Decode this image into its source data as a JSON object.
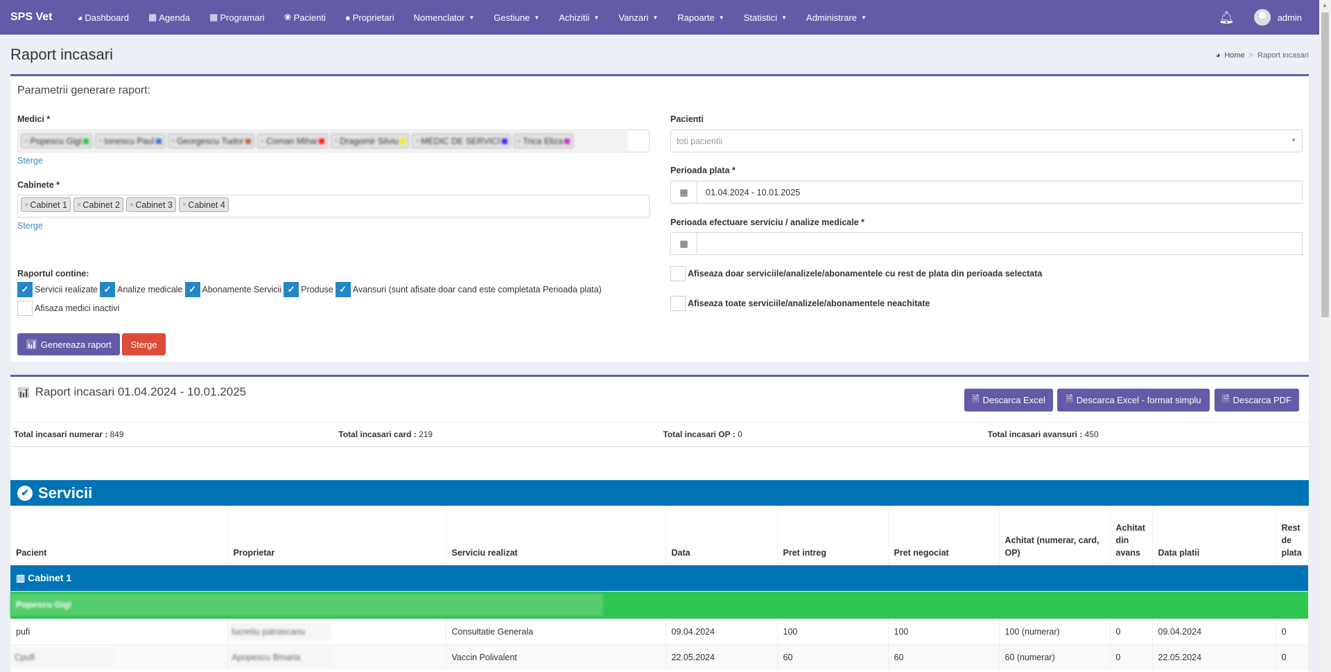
{
  "nav": {
    "brand": "SPS Vet",
    "items": [
      {
        "label": "Dashboard",
        "icon": "dashboard-icon"
      },
      {
        "label": "Agenda",
        "icon": "calendar-icon"
      },
      {
        "label": "Programari",
        "icon": "calendar-icon"
      },
      {
        "label": "Pacienti",
        "icon": "paw-icon"
      },
      {
        "label": "Proprietari",
        "icon": "user-icon"
      },
      {
        "label": "Nomenclator",
        "dropdown": true
      },
      {
        "label": "Gestiune",
        "dropdown": true
      },
      {
        "label": "Achizitii",
        "dropdown": true
      },
      {
        "label": "Vanzari",
        "dropdown": true
      },
      {
        "label": "Rapoarte",
        "dropdown": true
      },
      {
        "label": "Statistici",
        "dropdown": true
      },
      {
        "label": "Administrare",
        "dropdown": true
      }
    ],
    "user": "admin"
  },
  "page": {
    "title": "Raport incasari",
    "breadcrumb": {
      "home": "Home",
      "sep": ">",
      "current": "Raport incasari"
    }
  },
  "params": {
    "title": "Parametrii generare raport:",
    "medici_label": "Medici *",
    "medici": [
      {
        "name": "Popescu Gigi",
        "color": "#2ecc40"
      },
      {
        "name": "Ionescu Paul",
        "color": "#4a6fdc"
      },
      {
        "name": "Georgescu Tudor",
        "color": "#c0704f"
      },
      {
        "name": "Coman Mihai",
        "color": "#ff1a1a"
      },
      {
        "name": "Dragomir Silviu",
        "color": "#f2f20f"
      },
      {
        "name": "MEDIC DE SERVICI",
        "color": "#4b1ff0"
      },
      {
        "name": "Trica Eliza",
        "color": "#cc33cc"
      }
    ],
    "clear": "Sterge",
    "cabinete_label": "Cabinete *",
    "cabinete": [
      "Cabinet 1",
      "Cabinet 2",
      "Cabinet 3",
      "Cabinet 4"
    ],
    "contine_label": "Raportul contine:",
    "options": [
      {
        "label": "Servicii realizate",
        "checked": true
      },
      {
        "label": "Analize medicale",
        "checked": true
      },
      {
        "label": "Abonamente Servicii",
        "checked": true
      },
      {
        "label": "Produse",
        "checked": true
      },
      {
        "label": "Avansuri (sunt afisate doar cand este completata Perioada plata)",
        "checked": true
      }
    ],
    "inactivi": {
      "label": "Afisaza medici inactivi",
      "checked": false
    },
    "pacienti_label": "Pacienti",
    "pacienti_placeholder": "toti pacientii",
    "plata_label": "Perioada plata *",
    "plata_value": "01.04.2024 - 10.01.2025",
    "efectuare_label": "Perioada efectuare serviciu / analize medicale *",
    "efectuare_value": "",
    "rest_label": "Afiseaza doar serviciile/analizele/abonamentele cu rest de plata din perioada selectata",
    "neachitate_label": "Afiseaza toate serviciile/analizele/abonamentele neachitate",
    "generate": "Genereaza raport",
    "reset": "Sterge"
  },
  "report": {
    "title": "Raport incasari 01.04.2024 - 10.01.2025",
    "excel": "Descarca Excel",
    "excel_simple": "Descarca Excel - format simplu",
    "pdf": "Descarca PDF",
    "totals": [
      {
        "label": "Total incasari numerar :",
        "value": "849"
      },
      {
        "label": "Total incasari card :",
        "value": "219"
      },
      {
        "label": "Total incasari OP :",
        "value": "0"
      },
      {
        "label": "Total incasari avansuri :",
        "value": "450"
      }
    ],
    "section": "Servicii",
    "columns": [
      "Pacient",
      "Proprietar",
      "Serviciu realizat",
      "Data",
      "Pret intreg",
      "Pret negociat",
      "Achitat (numerar, card, OP)",
      "Achitat din avans",
      "Data platii",
      "Rest de plata"
    ],
    "cabinet": "Cabinet 1",
    "medic": "Popescu Gigi",
    "rows": [
      [
        "pufi",
        "lucretiu patrascanu",
        "Consultatie Generala",
        "09.04.2024",
        "100",
        "100",
        "100 (numerar)",
        "0",
        "09.04.2024",
        "0"
      ],
      [
        "Cpufi",
        "Apopescu Bmaria",
        "Vaccin Polivalent",
        "22.05.2024",
        "60",
        "60",
        "60 (numerar)",
        "0",
        "22.05.2024",
        "0"
      ]
    ]
  },
  "colors": {
    "primary": "#635aa8",
    "blue": "#0073b7",
    "green": "#2ec551",
    "danger": "#dd4b39"
  }
}
